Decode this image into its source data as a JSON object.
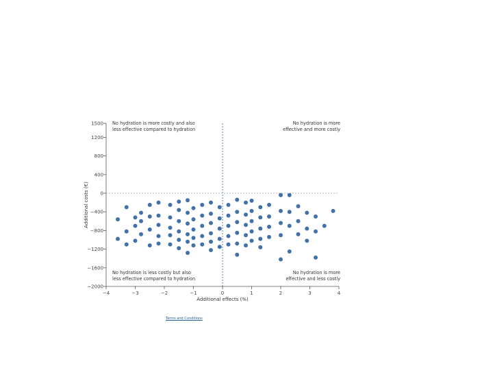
{
  "chart_data": {
    "type": "scatter",
    "xlabel": "Additional effects (%)",
    "ylabel": "Additional costs (€)",
    "xlim": [
      -4,
      4
    ],
    "ylim": [
      -2000,
      1500
    ],
    "xticks": [
      "−4",
      "−3",
      "−2",
      "−1",
      "0",
      "1",
      "2",
      "3",
      "4"
    ],
    "yticks": [
      "1500",
      "1200",
      "800",
      "400",
      "0",
      "−400",
      "−800",
      "−1200",
      "−1600",
      "−2000"
    ],
    "grid": false,
    "reference_lines": {
      "x": 0,
      "y": 0,
      "style": "dashed"
    },
    "point_color": "#2e62a0",
    "quadrant_notes": {
      "top_left": [
        "No hydration is more costly and also",
        "less effective compared to hydration"
      ],
      "top_right": [
        "No hydration is more",
        "effective and more costly"
      ],
      "bottom_left": [
        "No hydration is less costly but also",
        "less effective compared to hydration"
      ],
      "bottom_right": [
        "No hydration is more",
        "effective and less costly"
      ]
    },
    "series": [
      {
        "values": [
          [
            -3.6,
            -560
          ],
          [
            -3.6,
            -980
          ],
          [
            -3.3,
            -300
          ],
          [
            -3.3,
            -820
          ],
          [
            -3.3,
            -1100
          ],
          [
            -3.0,
            -520
          ],
          [
            -3.0,
            -700
          ],
          [
            -3.0,
            -1020
          ],
          [
            -2.8,
            -420
          ],
          [
            -2.8,
            -600
          ],
          [
            -2.8,
            -880
          ],
          [
            -2.5,
            -250
          ],
          [
            -2.5,
            -500
          ],
          [
            -2.5,
            -780
          ],
          [
            -2.5,
            -1120
          ],
          [
            -2.2,
            -200
          ],
          [
            -2.2,
            -480
          ],
          [
            -2.2,
            -680
          ],
          [
            -2.2,
            -920
          ],
          [
            -2.2,
            -1080
          ],
          [
            -1.8,
            -250
          ],
          [
            -1.8,
            -520
          ],
          [
            -1.8,
            -740
          ],
          [
            -1.8,
            -900
          ],
          [
            -1.8,
            -1100
          ],
          [
            -1.5,
            -180
          ],
          [
            -1.5,
            -360
          ],
          [
            -1.5,
            -600
          ],
          [
            -1.5,
            -820
          ],
          [
            -1.5,
            -1000
          ],
          [
            -1.5,
            -1180
          ],
          [
            -1.2,
            -150
          ],
          [
            -1.2,
            -420
          ],
          [
            -1.2,
            -650
          ],
          [
            -1.2,
            -880
          ],
          [
            -1.2,
            -1040
          ],
          [
            -1.2,
            -1280
          ],
          [
            -1.0,
            -320
          ],
          [
            -1.0,
            -560
          ],
          [
            -1.0,
            -780
          ],
          [
            -1.0,
            -960
          ],
          [
            -1.0,
            -1120
          ],
          [
            -0.7,
            -250
          ],
          [
            -0.7,
            -480
          ],
          [
            -0.7,
            -700
          ],
          [
            -0.7,
            -920
          ],
          [
            -0.7,
            -1100
          ],
          [
            -0.4,
            -200
          ],
          [
            -0.4,
            -440
          ],
          [
            -0.4,
            -640
          ],
          [
            -0.4,
            -860
          ],
          [
            -0.4,
            -1040
          ],
          [
            -0.4,
            -1220
          ],
          [
            -0.1,
            -300
          ],
          [
            -0.1,
            -540
          ],
          [
            -0.1,
            -760
          ],
          [
            -0.1,
            -980
          ],
          [
            -0.1,
            -1150
          ],
          [
            0.2,
            -250
          ],
          [
            0.2,
            -480
          ],
          [
            0.2,
            -700
          ],
          [
            0.2,
            -920
          ],
          [
            0.2,
            -1100
          ],
          [
            0.5,
            -140
          ],
          [
            0.5,
            -400
          ],
          [
            0.5,
            -620
          ],
          [
            0.5,
            -850
          ],
          [
            0.5,
            -1080
          ],
          [
            0.5,
            -1320
          ],
          [
            0.8,
            -200
          ],
          [
            0.8,
            -460
          ],
          [
            0.8,
            -680
          ],
          [
            0.8,
            -900
          ],
          [
            0.8,
            -1120
          ],
          [
            1.0,
            -160
          ],
          [
            1.0,
            -380
          ],
          [
            1.0,
            -600
          ],
          [
            1.0,
            -820
          ],
          [
            1.0,
            -1020
          ],
          [
            1.3,
            -300
          ],
          [
            1.3,
            -520
          ],
          [
            1.3,
            -760
          ],
          [
            1.3,
            -980
          ],
          [
            1.3,
            -1160
          ],
          [
            1.6,
            -250
          ],
          [
            1.6,
            -500
          ],
          [
            1.6,
            -720
          ],
          [
            1.6,
            -940
          ],
          [
            2.0,
            -40
          ],
          [
            2.0,
            -380
          ],
          [
            2.0,
            -640
          ],
          [
            2.0,
            -900
          ],
          [
            2.0,
            -1420
          ],
          [
            2.3,
            -40
          ],
          [
            2.3,
            -400
          ],
          [
            2.3,
            -700
          ],
          [
            2.3,
            -1250
          ],
          [
            2.6,
            -280
          ],
          [
            2.6,
            -600
          ],
          [
            2.6,
            -880
          ],
          [
            2.9,
            -420
          ],
          [
            2.9,
            -760
          ],
          [
            2.9,
            -1020
          ],
          [
            3.2,
            -500
          ],
          [
            3.2,
            -820
          ],
          [
            3.2,
            -1380
          ],
          [
            3.5,
            -700
          ],
          [
            3.8,
            -380
          ]
        ]
      }
    ]
  },
  "footer": {
    "link_label": "Terms and Conditions"
  }
}
